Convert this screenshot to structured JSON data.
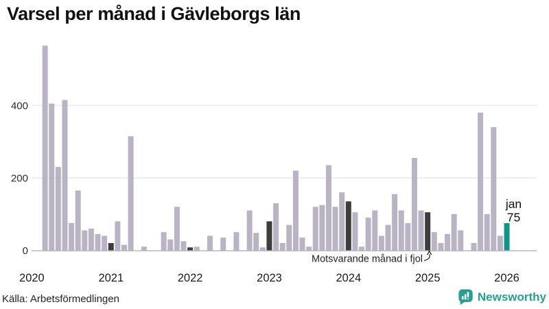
{
  "title": "Varsel per månad i Gävleborgs län",
  "source": "Källa: Arbetsförmedlingen",
  "branding": {
    "name": "Newsworthy",
    "logo_icon": "bar-chart-speech-bubble-icon",
    "color": "#2a9d92"
  },
  "colors": {
    "bar_default": "#b8b4c3",
    "bar_january": "#3d3d3d",
    "bar_current": "#12948a",
    "gridline": "#e8e8f0",
    "axis": "#b9b9c2",
    "text": "#1a1a1a"
  },
  "chart_data": {
    "type": "bar",
    "title": "Varsel per månad i Gävleborgs län",
    "xlabel": "",
    "ylabel": "",
    "start_month": "2020-01",
    "end_month": "2026-01",
    "values": [
      0,
      0,
      565,
      405,
      230,
      415,
      75,
      165,
      55,
      60,
      45,
      40,
      20,
      80,
      15,
      315,
      0,
      10,
      0,
      0,
      50,
      30,
      120,
      25,
      8,
      10,
      0,
      40,
      0,
      35,
      0,
      50,
      0,
      110,
      48,
      8,
      80,
      130,
      20,
      70,
      220,
      35,
      10,
      120,
      125,
      235,
      120,
      160,
      135,
      105,
      10,
      90,
      110,
      40,
      70,
      155,
      110,
      75,
      255,
      110,
      105,
      50,
      20,
      45,
      100,
      55,
      0,
      20,
      380,
      100,
      340,
      40,
      75
    ],
    "highlight_january_indices": [
      12,
      24,
      36,
      48,
      60
    ],
    "current_index": 72,
    "current_point_label": {
      "line1": "jan",
      "line2": "75"
    },
    "annotation": {
      "text": "Motsvarande månad i fjol",
      "target_month": "2025-01"
    },
    "yticks": [
      0,
      200,
      400
    ],
    "ylim": [
      0,
      580
    ],
    "year_labels": [
      "2020",
      "2021",
      "2022",
      "2023",
      "2024",
      "2025",
      "2026"
    ],
    "grid": "horizontal",
    "legend": "none"
  }
}
